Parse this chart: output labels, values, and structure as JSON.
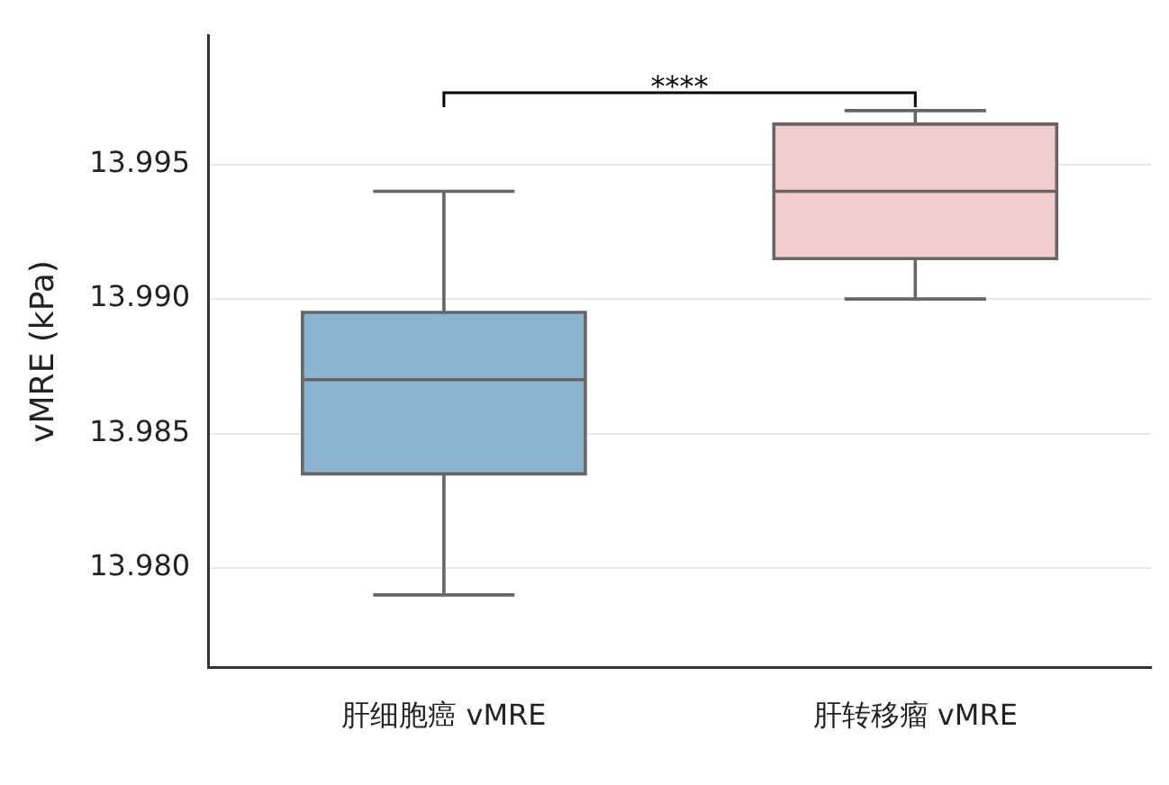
{
  "chart_data": {
    "type": "box",
    "ylabel": "vMRE (kPa)",
    "categories": [
      "肝细胞癌 vMRE",
      "肝转移瘤 vMRE"
    ],
    "colors": [
      "#8ab4d0",
      "#f2cccd"
    ],
    "boxes": [
      {
        "low": 13.979,
        "q1": 13.9835,
        "median": 13.987,
        "q3": 13.9895,
        "high": 13.994
      },
      {
        "low": 13.99,
        "q1": 13.9915,
        "median": 13.994,
        "q3": 13.9965,
        "high": 13.997
      }
    ],
    "ylim": [
      13.9763,
      13.9998
    ],
    "yticks": [
      {
        "value": 13.98,
        "label": "13.980"
      },
      13.985,
      {
        "value": 13.99,
        "label": "13.990"
      },
      13.995
    ],
    "grid": "y",
    "annotations": [
      "****"
    ]
  }
}
